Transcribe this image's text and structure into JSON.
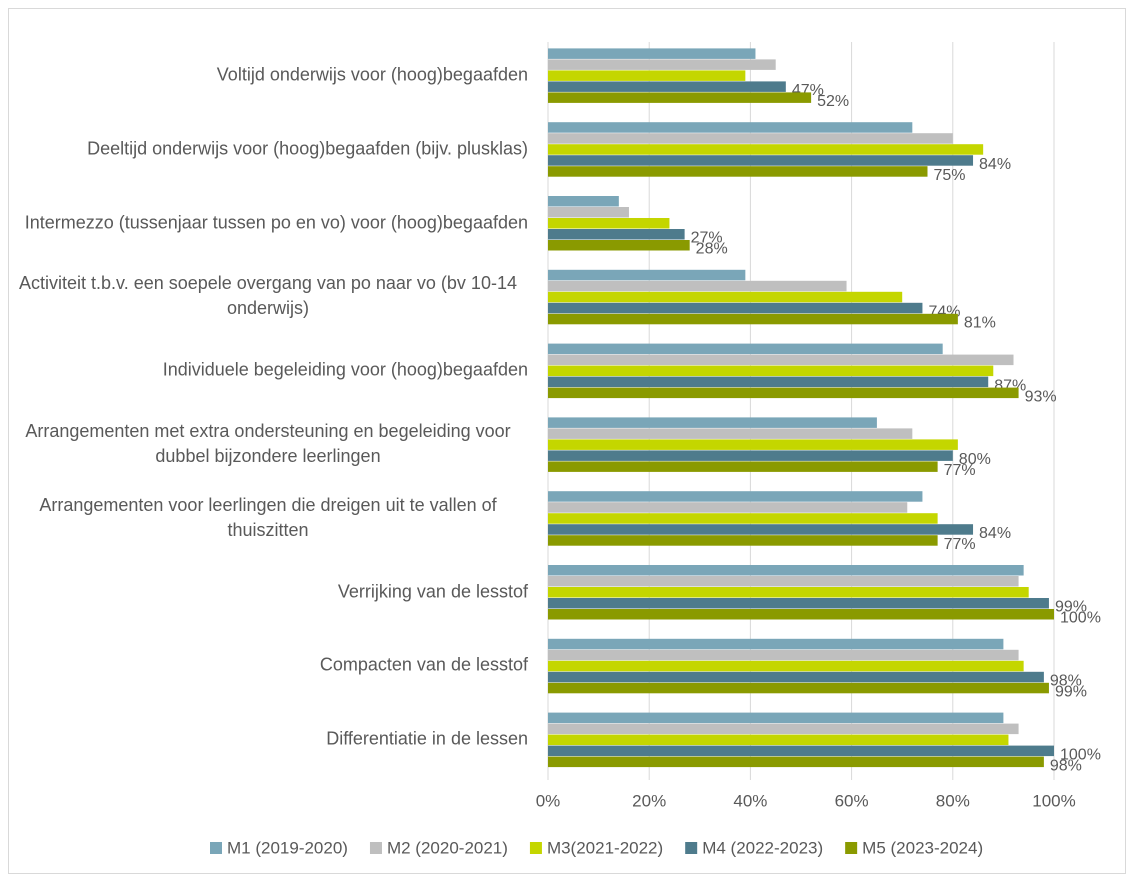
{
  "chart_data": {
    "type": "barh",
    "categories": [
      "Voltijd onderwijs voor (hoog)begaafden",
      "Deeltijd onderwijs voor (hoog)begaafden (bijv. plusklas)",
      "Intermezzo (tussenjaar tussen po en vo) voor (hoog)begaafden",
      "Activiteit t.b.v. een soepele overgang van po naar vo (bv 10-14 onderwijs)",
      "Individuele begeleiding voor (hoog)begaafden",
      "Arrangementen met extra ondersteuning en begeleiding voor dubbel bijzondere leerlingen",
      "Arrangementen voor leerlingen die dreigen uit te vallen of thuiszitten",
      "Verrijking van de lesstof",
      "Compacten van de lesstof",
      "Differentiatie in de lessen"
    ],
    "series": [
      {
        "name": "M1 (2019-2020)",
        "color": "#7aa6b8",
        "values": [
          41,
          72,
          14,
          39,
          78,
          65,
          74,
          94,
          90,
          90
        ]
      },
      {
        "name": "M2 (2020-2021)",
        "color": "#bfbfbf",
        "values": [
          45,
          80,
          16,
          59,
          92,
          72,
          71,
          93,
          93,
          93
        ]
      },
      {
        "name": "M3(2021-2022)",
        "color": "#c4d600",
        "values": [
          39,
          86,
          24,
          70,
          88,
          81,
          77,
          95,
          94,
          91
        ]
      },
      {
        "name": "M4 (2022-2023)",
        "color": "#4e7b8c",
        "values": [
          47,
          84,
          27,
          74,
          87,
          80,
          84,
          99,
          98,
          100
        ],
        "value_labels": [
          "47%",
          "84%",
          "27%",
          "74%",
          "87%",
          "80%",
          "84%",
          "99%",
          "98%",
          "100%"
        ]
      },
      {
        "name": "M5 (2023-2024)",
        "color": "#8a9a00",
        "values": [
          52,
          75,
          28,
          81,
          93,
          77,
          77,
          100,
          99,
          98
        ],
        "value_labels": [
          "52%",
          "75%",
          "28%",
          "81%",
          "93%",
          "77%",
          "77%",
          "100%",
          "99%",
          "98%"
        ]
      }
    ],
    "xlim": [
      0,
      100
    ],
    "xticks": [
      {
        "value": 0,
        "label": "0%"
      },
      {
        "value": 20,
        "label": "20%"
      },
      {
        "value": 40,
        "label": "40%"
      },
      {
        "value": 60,
        "label": "60%"
      },
      {
        "value": 80,
        "label": "80%"
      },
      {
        "value": 100,
        "label": "100%"
      }
    ],
    "grid": true,
    "legend": "bottom"
  }
}
